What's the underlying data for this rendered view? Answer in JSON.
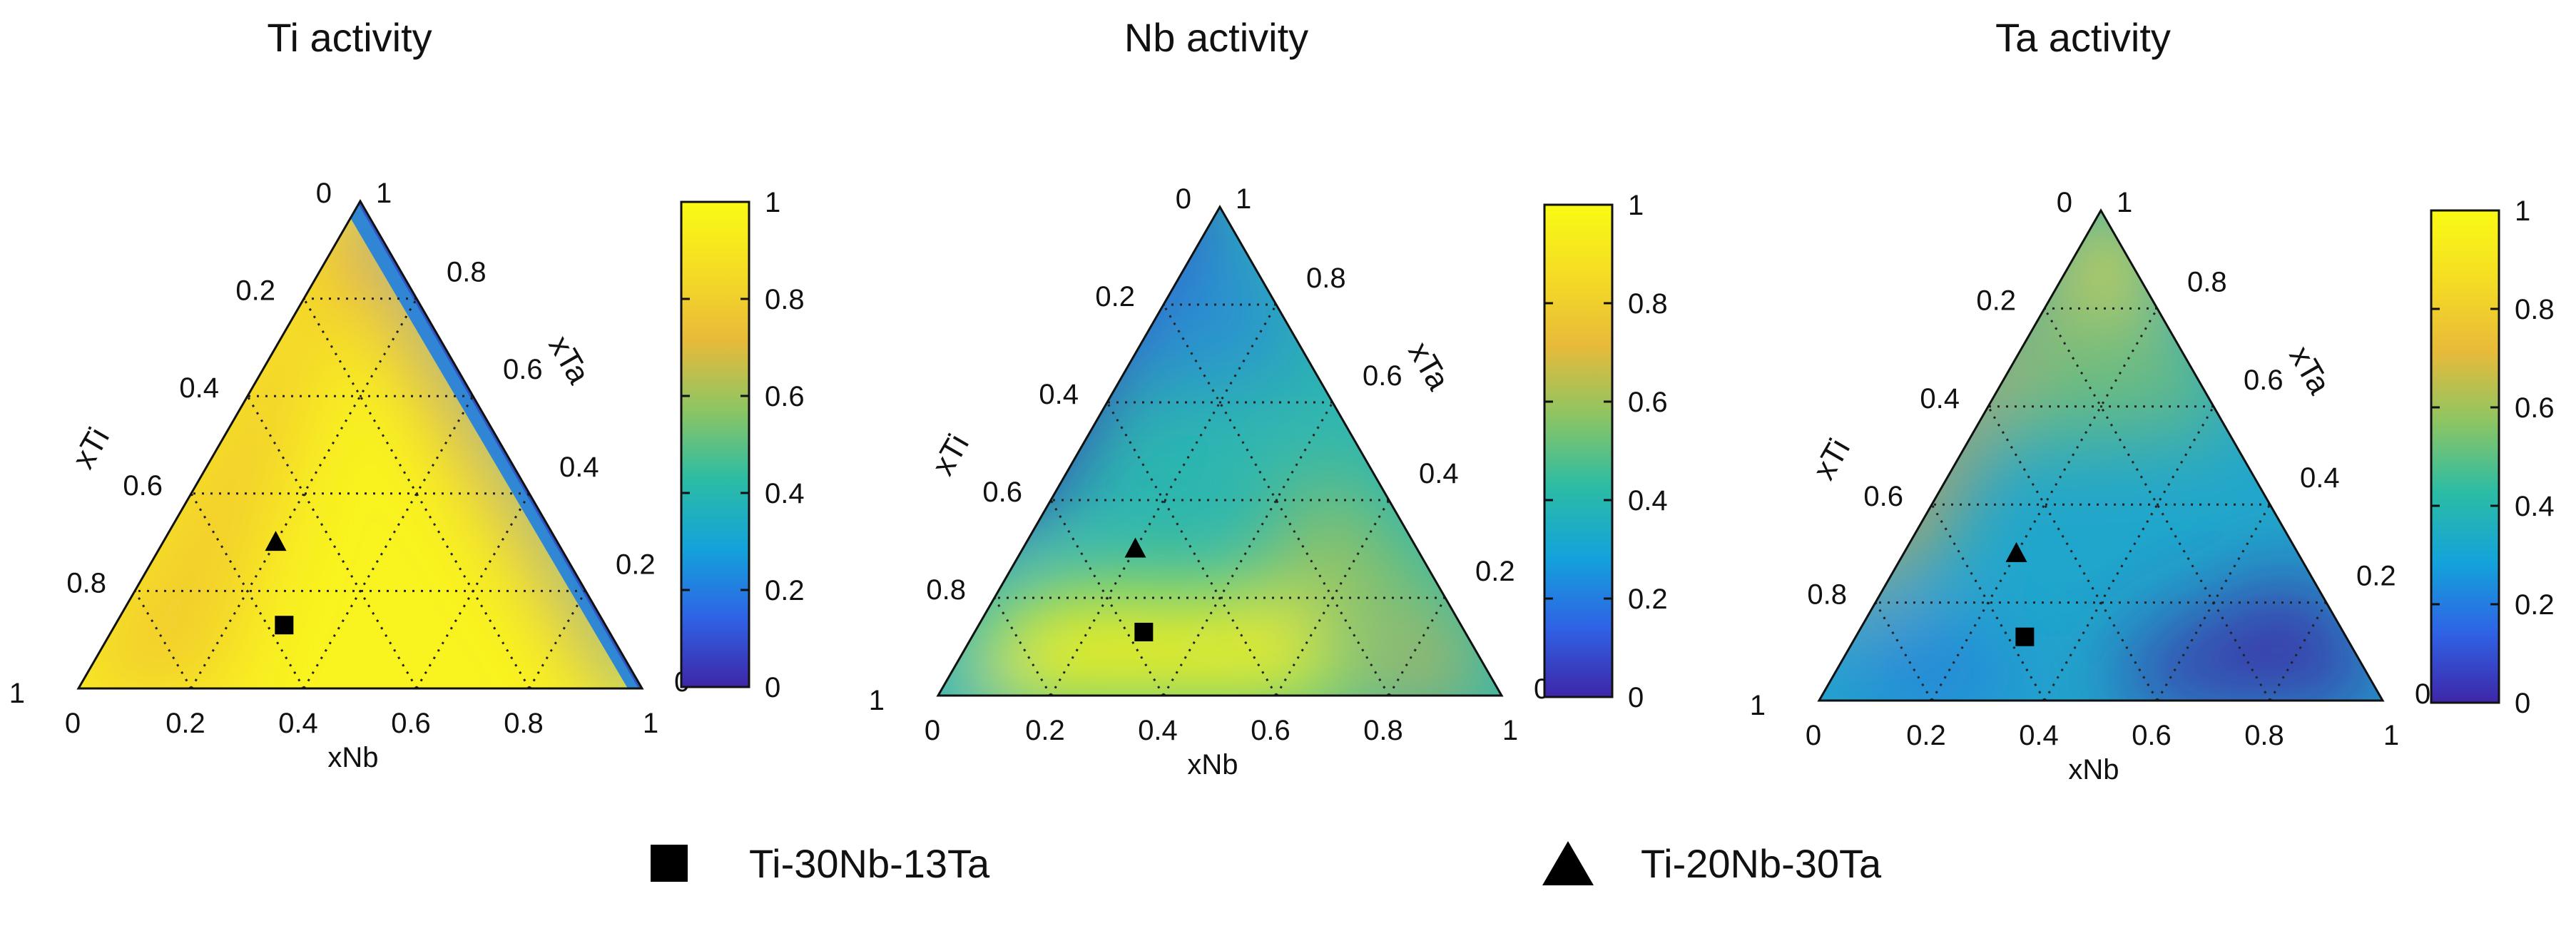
{
  "chart_data": [
    {
      "type": "ternary-heatmap",
      "title": "Ti activity",
      "axes": {
        "left": "xTi",
        "right": "xTa",
        "bottom": "xNb"
      },
      "left_ticks": [
        "0",
        "0.2",
        "0.4",
        "0.6",
        "0.8",
        "1"
      ],
      "right_ticks": [
        "1",
        "0.8",
        "0.6",
        "0.4",
        "0.2",
        "0"
      ],
      "bottom_ticks": [
        "0",
        "0.2",
        "0.4",
        "0.6",
        "0.8",
        "1"
      ],
      "colorbar": {
        "range": [
          0,
          1
        ],
        "ticks": [
          "1",
          "0.8",
          "0.6",
          "0.4",
          "0.2",
          "0"
        ]
      },
      "grid": "dotted",
      "points": [
        {
          "name": "Ti-30Nb-13Ta",
          "marker": "square",
          "xTi": 0.57,
          "xNb": 0.3,
          "xTa": 0.13
        },
        {
          "name": "Ti-20Nb-30Ta",
          "marker": "triangle",
          "xTi": 0.5,
          "xNb": 0.2,
          "xTa": 0.3
        }
      ]
    },
    {
      "type": "ternary-heatmap",
      "title": "Nb activity",
      "axes": {
        "left": "xTi",
        "right": "xTa",
        "bottom": "xNb"
      },
      "left_ticks": [
        "0",
        "0.2",
        "0.4",
        "0.6",
        "0.8",
        "1"
      ],
      "right_ticks": [
        "1",
        "0.8",
        "0.6",
        "0.4",
        "0.2",
        "0"
      ],
      "bottom_ticks": [
        "0",
        "0.2",
        "0.4",
        "0.6",
        "0.8",
        "1"
      ],
      "colorbar": {
        "range": [
          0,
          1
        ],
        "ticks": [
          "1",
          "0.8",
          "0.6",
          "0.4",
          "0.2",
          "0"
        ]
      },
      "grid": "dotted",
      "points": [
        {
          "name": "Ti-30Nb-13Ta",
          "marker": "square",
          "xTi": 0.57,
          "xNb": 0.3,
          "xTa": 0.13
        },
        {
          "name": "Ti-20Nb-30Ta",
          "marker": "triangle",
          "xTi": 0.5,
          "xNb": 0.2,
          "xTa": 0.3
        }
      ]
    },
    {
      "type": "ternary-heatmap",
      "title": "Ta activity",
      "axes": {
        "left": "xTi",
        "right": "xTa",
        "bottom": "xNb"
      },
      "left_ticks": [
        "0",
        "0.2",
        "0.4",
        "0.6",
        "0.8",
        "1"
      ],
      "right_ticks": [
        "1",
        "0.8",
        "0.6",
        "0.4",
        "0.2",
        "0"
      ],
      "bottom_ticks": [
        "0",
        "0.2",
        "0.4",
        "0.6",
        "0.8",
        "1"
      ],
      "colorbar": {
        "range": [
          0,
          1
        ],
        "ticks": [
          "1",
          "0.8",
          "0.6",
          "0.4",
          "0.2",
          "0"
        ]
      },
      "grid": "dotted",
      "points": [
        {
          "name": "Ti-30Nb-13Ta",
          "marker": "square",
          "xTi": 0.57,
          "xNb": 0.3,
          "xTa": 0.13
        },
        {
          "name": "Ti-20Nb-30Ta",
          "marker": "triangle",
          "xTi": 0.5,
          "xNb": 0.2,
          "xTa": 0.3
        }
      ]
    }
  ],
  "legend": [
    {
      "label": "Ti-30Nb-13Ta",
      "marker": "square"
    },
    {
      "label": "Ti-20Nb-30Ta",
      "marker": "triangle"
    }
  ],
  "colormap": [
    "#3e26a8",
    "#2f63e6",
    "#13a3da",
    "#2cbca4",
    "#8dc563",
    "#e8ba3a",
    "#f5dc24",
    "#f9fb14"
  ]
}
